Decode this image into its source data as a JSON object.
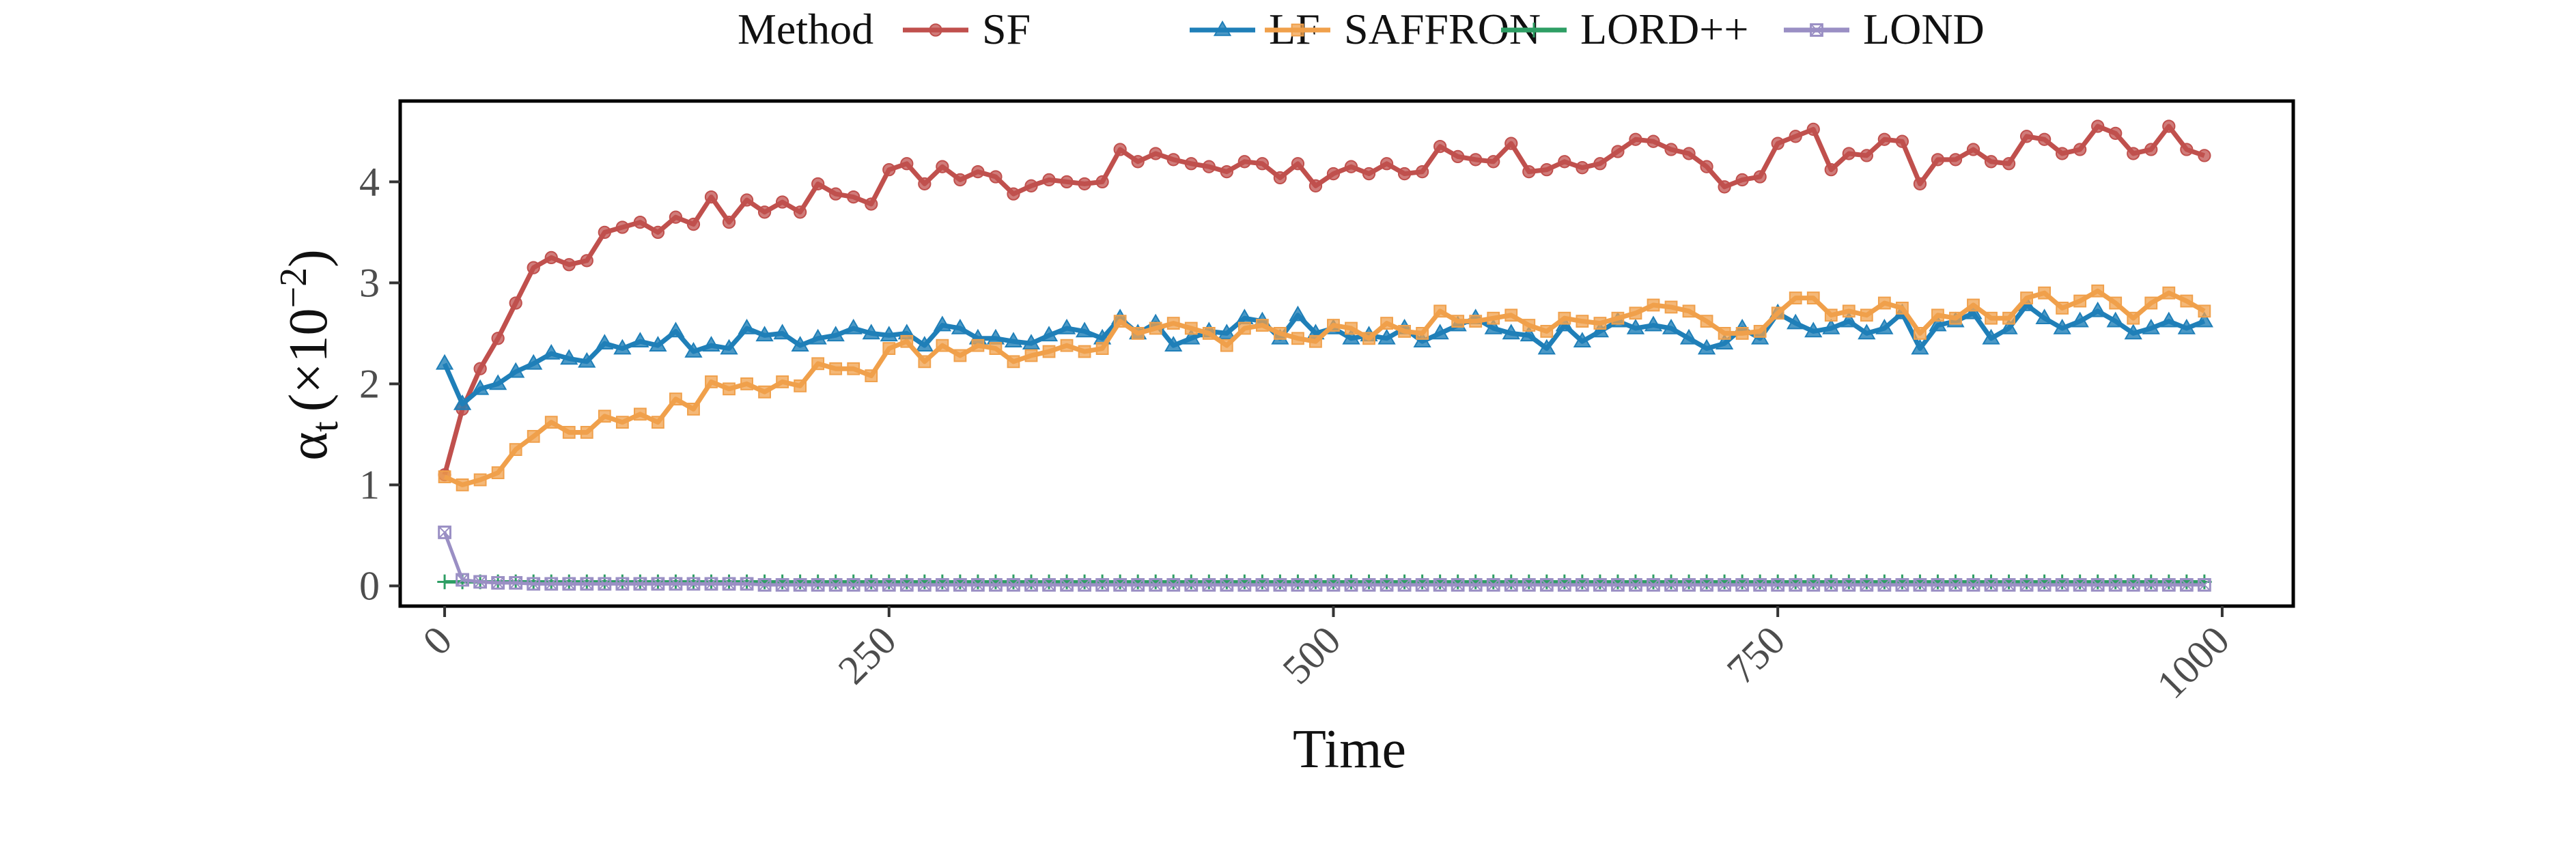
{
  "chart_data": {
    "type": "line",
    "legend": {
      "title": "Method",
      "placement": "top",
      "entries": [
        "SF",
        "LF",
        "SAFFRON",
        "LORD++",
        "LOND"
      ]
    },
    "xlabel": "Time",
    "ylabel": "α",
    "ylabel_subscript": "t",
    "ylabel_unit_prefix": "(×10",
    "ylabel_unit_exp": "−2",
    "ylabel_unit_suffix": ")",
    "xlim": [
      -25,
      1040
    ],
    "ylim": [
      -0.2,
      4.8
    ],
    "xticks": [
      0,
      250,
      500,
      750,
      1000
    ],
    "xtick_labels": [
      "0",
      "250",
      "500",
      "750",
      "1000"
    ],
    "yticks": [
      0,
      1,
      2,
      3,
      4
    ],
    "ytick_labels": [
      "0",
      "1",
      "2",
      "3",
      "4"
    ],
    "grid": false,
    "x": [
      0,
      10,
      20,
      30,
      40,
      50,
      60,
      70,
      80,
      90,
      100,
      110,
      120,
      130,
      140,
      150,
      160,
      170,
      180,
      190,
      200,
      210,
      220,
      230,
      240,
      250,
      260,
      270,
      280,
      290,
      300,
      310,
      320,
      330,
      340,
      350,
      360,
      370,
      380,
      390,
      400,
      410,
      420,
      430,
      440,
      450,
      460,
      470,
      480,
      490,
      500,
      510,
      520,
      530,
      540,
      550,
      560,
      570,
      580,
      590,
      600,
      610,
      620,
      630,
      640,
      650,
      660,
      670,
      680,
      690,
      700,
      710,
      720,
      730,
      740,
      750,
      760,
      770,
      780,
      790,
      800,
      810,
      820,
      830,
      840,
      850,
      860,
      870,
      880,
      890,
      900,
      910,
      920,
      930,
      940,
      950,
      960,
      970,
      980,
      990
    ],
    "series": [
      {
        "name": "SF",
        "color": "#c0504d",
        "marker": "circle",
        "values": [
          1.1,
          1.75,
          2.15,
          2.45,
          2.8,
          3.15,
          3.25,
          3.18,
          3.22,
          3.5,
          3.55,
          3.6,
          3.5,
          3.65,
          3.58,
          3.85,
          3.6,
          3.82,
          3.7,
          3.8,
          3.7,
          3.98,
          3.88,
          3.85,
          3.78,
          4.12,
          4.18,
          3.98,
          4.15,
          4.02,
          4.1,
          4.05,
          3.88,
          3.96,
          4.02,
          4.0,
          3.98,
          4.0,
          4.32,
          4.2,
          4.28,
          4.22,
          4.18,
          4.15,
          4.1,
          4.2,
          4.18,
          4.04,
          4.18,
          3.96,
          4.08,
          4.15,
          4.08,
          4.18,
          4.08,
          4.1,
          4.35,
          4.25,
          4.22,
          4.2,
          4.38,
          4.1,
          4.12,
          4.2,
          4.14,
          4.18,
          4.3,
          4.42,
          4.4,
          4.32,
          4.28,
          4.15,
          3.95,
          4.02,
          4.05,
          4.38,
          4.45,
          4.52,
          4.12,
          4.28,
          4.26,
          4.42,
          4.4,
          3.98,
          4.22,
          4.22,
          4.32,
          4.2,
          4.18,
          4.45,
          4.42,
          4.28,
          4.32,
          4.55,
          4.48,
          4.28,
          4.32,
          4.55,
          4.32,
          4.26
        ]
      },
      {
        "name": "LF",
        "color": "#1f7fb8",
        "marker": "triangle",
        "values": [
          2.2,
          1.8,
          1.95,
          2.0,
          2.12,
          2.2,
          2.3,
          2.25,
          2.22,
          2.4,
          2.35,
          2.42,
          2.38,
          2.52,
          2.32,
          2.38,
          2.35,
          2.55,
          2.48,
          2.5,
          2.38,
          2.45,
          2.48,
          2.55,
          2.5,
          2.48,
          2.5,
          2.38,
          2.58,
          2.55,
          2.45,
          2.45,
          2.42,
          2.4,
          2.48,
          2.55,
          2.52,
          2.45,
          2.65,
          2.5,
          2.6,
          2.38,
          2.45,
          2.52,
          2.5,
          2.65,
          2.62,
          2.45,
          2.68,
          2.5,
          2.55,
          2.45,
          2.48,
          2.45,
          2.55,
          2.42,
          2.5,
          2.58,
          2.65,
          2.55,
          2.5,
          2.48,
          2.35,
          2.58,
          2.42,
          2.52,
          2.62,
          2.55,
          2.58,
          2.55,
          2.45,
          2.35,
          2.4,
          2.55,
          2.45,
          2.7,
          2.6,
          2.52,
          2.55,
          2.62,
          2.5,
          2.55,
          2.7,
          2.35,
          2.58,
          2.62,
          2.7,
          2.45,
          2.55,
          2.78,
          2.65,
          2.55,
          2.62,
          2.72,
          2.62,
          2.5,
          2.55,
          2.62,
          2.55,
          2.62
        ]
      },
      {
        "name": "SAFFRON",
        "color": "#f0a04b",
        "marker": "square",
        "values": [
          1.08,
          1.0,
          1.05,
          1.12,
          1.35,
          1.48,
          1.62,
          1.52,
          1.52,
          1.68,
          1.62,
          1.7,
          1.62,
          1.85,
          1.75,
          2.02,
          1.95,
          2.0,
          1.92,
          2.02,
          1.98,
          2.2,
          2.15,
          2.15,
          2.08,
          2.35,
          2.42,
          2.22,
          2.38,
          2.28,
          2.38,
          2.35,
          2.22,
          2.28,
          2.32,
          2.38,
          2.32,
          2.35,
          2.62,
          2.5,
          2.55,
          2.6,
          2.55,
          2.5,
          2.38,
          2.55,
          2.58,
          2.5,
          2.45,
          2.42,
          2.58,
          2.55,
          2.45,
          2.6,
          2.52,
          2.5,
          2.72,
          2.62,
          2.62,
          2.65,
          2.68,
          2.58,
          2.52,
          2.65,
          2.62,
          2.6,
          2.65,
          2.7,
          2.78,
          2.76,
          2.72,
          2.62,
          2.5,
          2.5,
          2.52,
          2.7,
          2.85,
          2.85,
          2.68,
          2.72,
          2.68,
          2.8,
          2.75,
          2.5,
          2.68,
          2.65,
          2.78,
          2.65,
          2.65,
          2.85,
          2.9,
          2.75,
          2.82,
          2.92,
          2.8,
          2.65,
          2.8,
          2.9,
          2.82,
          2.72
        ]
      },
      {
        "name": "LORD++",
        "color": "#2e9e64",
        "marker": "plus",
        "values": [
          0.04,
          0.04,
          0.04,
          0.04,
          0.04,
          0.04,
          0.04,
          0.04,
          0.04,
          0.04,
          0.04,
          0.04,
          0.04,
          0.04,
          0.04,
          0.04,
          0.04,
          0.04,
          0.04,
          0.04,
          0.04,
          0.04,
          0.04,
          0.04,
          0.04,
          0.04,
          0.04,
          0.04,
          0.04,
          0.04,
          0.04,
          0.04,
          0.04,
          0.04,
          0.04,
          0.04,
          0.04,
          0.04,
          0.04,
          0.04,
          0.04,
          0.04,
          0.04,
          0.04,
          0.04,
          0.04,
          0.04,
          0.04,
          0.04,
          0.04,
          0.04,
          0.04,
          0.04,
          0.04,
          0.04,
          0.04,
          0.04,
          0.04,
          0.04,
          0.04,
          0.04,
          0.04,
          0.04,
          0.04,
          0.04,
          0.04,
          0.04,
          0.04,
          0.04,
          0.04,
          0.04,
          0.04,
          0.04,
          0.04,
          0.04,
          0.04,
          0.04,
          0.04,
          0.04,
          0.04,
          0.04,
          0.04,
          0.04,
          0.04,
          0.04,
          0.04,
          0.04,
          0.04,
          0.04,
          0.04,
          0.04,
          0.04,
          0.04,
          0.04,
          0.04,
          0.04,
          0.04,
          0.04,
          0.04,
          0.04
        ]
      },
      {
        "name": "LOND",
        "color": "#9a8fc4",
        "marker": "square-x",
        "values": [
          0.53,
          0.06,
          0.04,
          0.03,
          0.03,
          0.02,
          0.02,
          0.02,
          0.02,
          0.02,
          0.02,
          0.02,
          0.02,
          0.02,
          0.02,
          0.02,
          0.02,
          0.02,
          0.01,
          0.01,
          0.01,
          0.01,
          0.01,
          0.01,
          0.01,
          0.01,
          0.01,
          0.01,
          0.01,
          0.01,
          0.01,
          0.01,
          0.01,
          0.01,
          0.01,
          0.01,
          0.01,
          0.01,
          0.01,
          0.01,
          0.01,
          0.01,
          0.01,
          0.01,
          0.01,
          0.01,
          0.01,
          0.01,
          0.01,
          0.01,
          0.01,
          0.01,
          0.01,
          0.01,
          0.01,
          0.01,
          0.01,
          0.01,
          0.01,
          0.01,
          0.01,
          0.01,
          0.01,
          0.01,
          0.01,
          0.01,
          0.01,
          0.01,
          0.01,
          0.01,
          0.01,
          0.01,
          0.01,
          0.01,
          0.01,
          0.01,
          0.01,
          0.01,
          0.01,
          0.01,
          0.01,
          0.01,
          0.01,
          0.01,
          0.01,
          0.01,
          0.01,
          0.01,
          0.01,
          0.01,
          0.01,
          0.01,
          0.01,
          0.01,
          0.01,
          0.01,
          0.01,
          0.01,
          0.01,
          0.01
        ]
      }
    ]
  }
}
